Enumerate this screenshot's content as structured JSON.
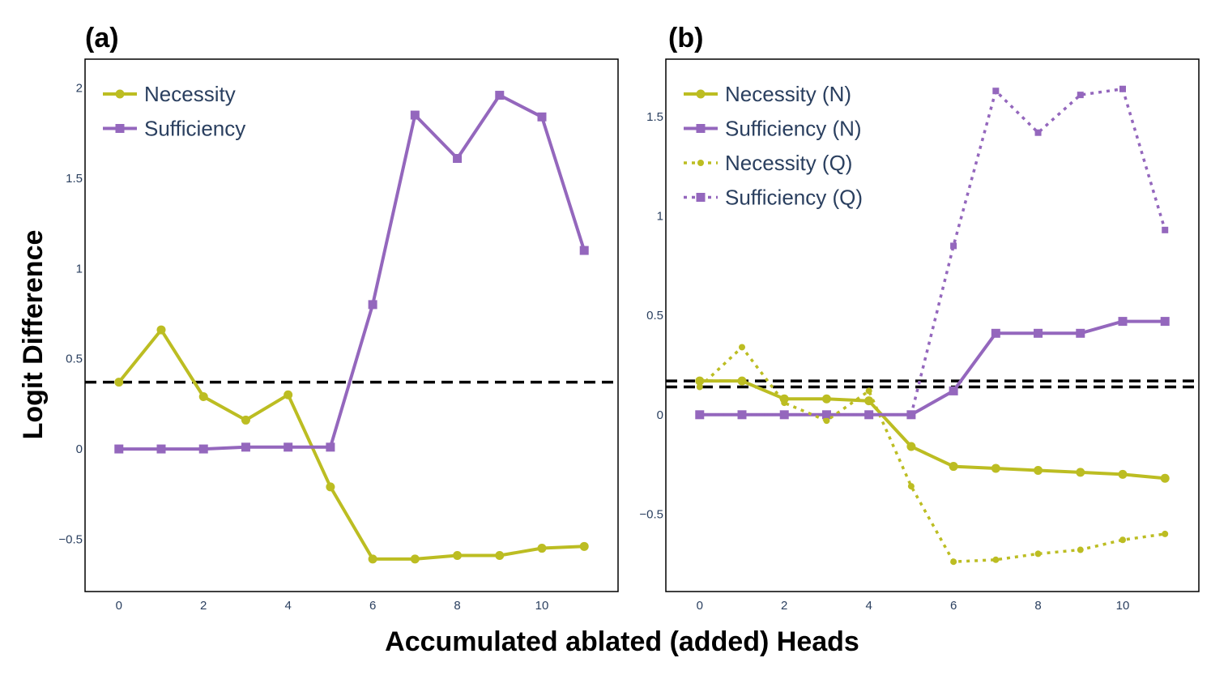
{
  "figure": {
    "ylabel": "Logit Difference",
    "xlabel": "Accumulated ablated (added) Heads"
  },
  "colors": {
    "necessity": "#bcbd22",
    "sufficiency": "#9467bd",
    "baseline": "#000000",
    "text": "#2a3f5f"
  },
  "chart_data": [
    {
      "type": "line",
      "panel_label": "(a)",
      "x": [
        0,
        1,
        2,
        3,
        4,
        5,
        6,
        7,
        8,
        9,
        10,
        11
      ],
      "xlim": [
        -0.8,
        11.8
      ],
      "ylim": [
        -0.79,
        2.16
      ],
      "xticks": [
        0,
        2,
        4,
        6,
        8,
        10
      ],
      "xtick_labels": [
        "0",
        "2",
        "4",
        "6",
        "8",
        "10"
      ],
      "yticks": [
        -0.5,
        0,
        0.5,
        1,
        1.5,
        2
      ],
      "ytick_labels": [
        "−0.5",
        "0",
        "0.5",
        "1",
        "1.5",
        "2"
      ],
      "legend_position": "top-left",
      "baselines": [
        0.37
      ],
      "series": [
        {
          "name": "Necessity",
          "style": "solid",
          "marker": "circle",
          "color_key": "necessity",
          "values": [
            0.37,
            0.66,
            0.29,
            0.16,
            0.3,
            -0.21,
            -0.61,
            -0.61,
            -0.59,
            -0.59,
            -0.55,
            -0.54
          ]
        },
        {
          "name": "Sufficiency",
          "style": "solid",
          "marker": "square",
          "color_key": "sufficiency",
          "values": [
            0.0,
            0.0,
            0.0,
            0.01,
            0.01,
            0.01,
            0.8,
            1.85,
            1.61,
            1.96,
            1.84,
            1.1
          ]
        }
      ]
    },
    {
      "type": "line",
      "panel_label": "(b)",
      "x": [
        0,
        1,
        2,
        3,
        4,
        5,
        6,
        7,
        8,
        9,
        10,
        11
      ],
      "xlim": [
        -0.8,
        11.8
      ],
      "ylim": [
        -0.89,
        1.79
      ],
      "xticks": [
        0,
        2,
        4,
        6,
        8,
        10
      ],
      "xtick_labels": [
        "0",
        "2",
        "4",
        "6",
        "8",
        "10"
      ],
      "yticks": [
        -0.5,
        0,
        0.5,
        1,
        1.5
      ],
      "ytick_labels": [
        "−0.5",
        "0",
        "0.5",
        "1",
        "1.5"
      ],
      "legend_position": "top-left",
      "baselines": [
        0.17,
        0.14
      ],
      "series": [
        {
          "name": "Necessity (N)",
          "style": "solid",
          "marker": "circle",
          "color_key": "necessity",
          "values": [
            0.17,
            0.17,
            0.08,
            0.08,
            0.07,
            -0.16,
            -0.26,
            -0.27,
            -0.28,
            -0.29,
            -0.3,
            -0.32
          ]
        },
        {
          "name": "Sufficiency (N)",
          "style": "solid",
          "marker": "square",
          "color_key": "sufficiency",
          "values": [
            0.0,
            0.0,
            0.0,
            0.0,
            0.0,
            0.0,
            0.12,
            0.41,
            0.41,
            0.41,
            0.47,
            0.47
          ]
        },
        {
          "name": "Necessity (Q)",
          "style": "dotted",
          "marker": "circle",
          "color_key": "necessity",
          "values": [
            0.14,
            0.34,
            0.06,
            -0.03,
            0.12,
            -0.36,
            -0.74,
            -0.73,
            -0.7,
            -0.68,
            -0.63,
            -0.6
          ]
        },
        {
          "name": "Sufficiency (Q)",
          "style": "dotted",
          "marker": "square",
          "color_key": "sufficiency",
          "values": [
            0.0,
            0.0,
            0.0,
            0.0,
            0.0,
            0.0,
            0.85,
            1.63,
            1.42,
            1.61,
            1.64,
            0.93
          ]
        }
      ]
    }
  ]
}
